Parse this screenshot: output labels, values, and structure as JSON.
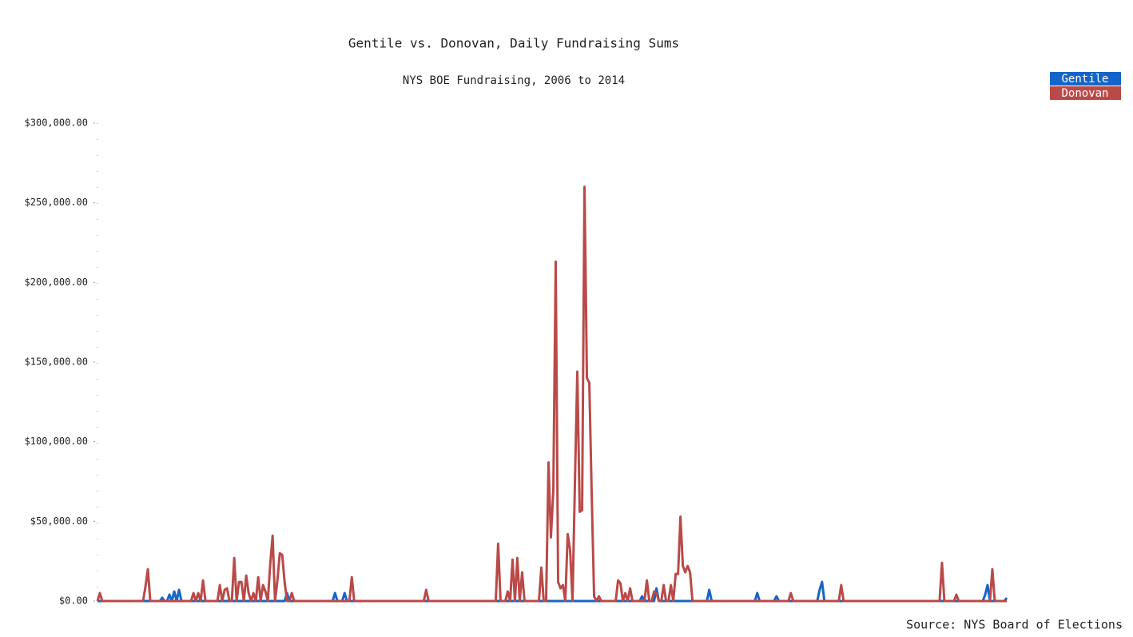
{
  "chart_data": {
    "type": "line",
    "title": "Gentile vs. Donovan, Daily Fundraising Sums",
    "subtitle": "NYS BOE Fundraising, 2006 to 2014",
    "source": "Source: NYS Board of Elections",
    "ylim": [
      0,
      300000
    ],
    "yticks": [
      {
        "value": 0,
        "label": "$0.00"
      },
      {
        "value": 50000,
        "label": "$50,000.00"
      },
      {
        "value": 100000,
        "label": "$100,000.00"
      },
      {
        "value": 150000,
        "label": "$150,000.00"
      },
      {
        "value": 200000,
        "label": "$200,000.00"
      },
      {
        "value": 250000,
        "label": "$250,000.00"
      },
      {
        "value": 300000,
        "label": "$300,000.00"
      }
    ],
    "legend": "top-right",
    "series": [
      {
        "name": "Gentile",
        "color": "#1565c8",
        "values": [
          0,
          0,
          0,
          0,
          0,
          0,
          0,
          0,
          0,
          0,
          0,
          0,
          0,
          0,
          0,
          0,
          0,
          0,
          0,
          0,
          0,
          0,
          0,
          0,
          0,
          0,
          0,
          2000,
          0,
          0,
          4000,
          0,
          6000,
          0,
          7000,
          0,
          0,
          0,
          0,
          0,
          0,
          0,
          0,
          0,
          0,
          0,
          0,
          0,
          0,
          0,
          0,
          0,
          0,
          0,
          0,
          0,
          0,
          0,
          0,
          0,
          0,
          0,
          0,
          0,
          0,
          0,
          0,
          0,
          0,
          0,
          0,
          0,
          0,
          0,
          0,
          0,
          0,
          0,
          0,
          5000,
          0,
          0,
          0,
          0,
          0,
          0,
          0,
          0,
          0,
          0,
          0,
          0,
          0,
          0,
          0,
          0,
          0,
          0,
          0,
          5000,
          0,
          0,
          0,
          5000,
          0,
          0,
          0,
          0,
          0,
          0,
          0,
          0,
          0,
          0,
          0,
          0,
          0,
          0,
          0,
          0,
          0,
          0,
          0,
          0,
          0,
          0,
          0,
          0,
          0,
          0,
          0,
          0,
          0,
          0,
          0,
          0,
          0,
          0,
          0,
          0,
          0,
          0,
          0,
          0,
          0,
          0,
          0,
          0,
          0,
          0,
          0,
          0,
          0,
          0,
          0,
          0,
          0,
          0,
          0,
          0,
          0,
          0,
          0,
          0,
          0,
          0,
          0,
          0,
          0,
          0,
          0,
          0,
          0,
          0,
          0,
          0,
          0,
          0,
          0,
          0,
          0,
          0,
          0,
          0,
          0,
          0,
          0,
          0,
          0,
          0,
          0,
          0,
          0,
          0,
          0,
          0,
          0,
          0,
          0,
          0,
          0,
          0,
          0,
          0,
          0,
          0,
          0,
          0,
          0,
          0,
          0,
          0,
          0,
          0,
          0,
          0,
          0,
          0,
          0,
          0,
          0,
          0,
          0,
          0,
          0,
          0,
          0,
          3000,
          0,
          0,
          0,
          0,
          0,
          8000,
          0,
          0,
          0,
          0,
          0,
          0,
          0,
          0,
          0,
          0,
          0,
          0,
          0,
          0,
          0,
          0,
          0,
          0,
          0,
          0,
          0,
          7000,
          0,
          0,
          0,
          0,
          0,
          0,
          0,
          0,
          0,
          0,
          0,
          0,
          0,
          0,
          0,
          0,
          0,
          0,
          0,
          5000,
          0,
          0,
          0,
          0,
          0,
          0,
          0,
          3000,
          0,
          0,
          0,
          0,
          0,
          0,
          0,
          0,
          0,
          0,
          0,
          0,
          0,
          0,
          0,
          0,
          0,
          7000,
          12000,
          0,
          0,
          0,
          0,
          0,
          0,
          0,
          0,
          0,
          0,
          0,
          0,
          0,
          0,
          0,
          0,
          0,
          0,
          0,
          0,
          0,
          0,
          0,
          0,
          0,
          0,
          0,
          0,
          0,
          0,
          0,
          0,
          0,
          0,
          0,
          0,
          0,
          0,
          0,
          0,
          0,
          0,
          0,
          0,
          0,
          0,
          0,
          0,
          0,
          0,
          0,
          0,
          0,
          0,
          0,
          0,
          0,
          0,
          0,
          0,
          0,
          0,
          0,
          0,
          0,
          0,
          0,
          4000,
          10000,
          0,
          0,
          0,
          0,
          0,
          0,
          0,
          2000
        ]
      },
      {
        "name": "Donovan",
        "color": "#b94a48",
        "values": [
          0,
          5000,
          0,
          0,
          0,
          0,
          0,
          0,
          0,
          0,
          0,
          0,
          0,
          0,
          0,
          0,
          0,
          0,
          0,
          0,
          9000,
          20000,
          0,
          0,
          0,
          0,
          0,
          0,
          0,
          0,
          0,
          0,
          0,
          0,
          0,
          0,
          0,
          0,
          0,
          0,
          5000,
          0,
          5000,
          0,
          13000,
          0,
          0,
          0,
          0,
          0,
          0,
          10000,
          0,
          7000,
          8000,
          0,
          0,
          27000,
          0,
          12000,
          12000,
          0,
          16000,
          5000,
          0,
          5000,
          0,
          15000,
          0,
          10000,
          6000,
          0,
          23000,
          41000,
          0,
          13000,
          30000,
          29000,
          12000,
          0,
          0,
          5000,
          0,
          0,
          0,
          0,
          0,
          0,
          0,
          0,
          0,
          0,
          0,
          0,
          0,
          0,
          0,
          0,
          0,
          0,
          0,
          0,
          0,
          0,
          0,
          0,
          15000,
          0,
          0,
          0,
          0,
          0,
          0,
          0,
          0,
          0,
          0,
          0,
          0,
          0,
          0,
          0,
          0,
          0,
          0,
          0,
          0,
          0,
          0,
          0,
          0,
          0,
          0,
          0,
          0,
          0,
          0,
          7000,
          0,
          0,
          0,
          0,
          0,
          0,
          0,
          0,
          0,
          0,
          0,
          0,
          0,
          0,
          0,
          0,
          0,
          0,
          0,
          0,
          0,
          0,
          0,
          0,
          0,
          0,
          0,
          0,
          0,
          36000,
          0,
          0,
          0,
          6000,
          0,
          26000,
          0,
          27000,
          0,
          18000,
          0,
          0,
          0,
          0,
          0,
          0,
          0,
          21000,
          0,
          0,
          87000,
          40000,
          69000,
          213000,
          12000,
          8000,
          10000,
          0,
          42000,
          32000,
          0,
          74000,
          144000,
          56000,
          57000,
          260000,
          140000,
          137000,
          67000,
          3000,
          0,
          3000,
          0,
          0,
          0,
          0,
          0,
          0,
          0,
          13000,
          11000,
          0,
          5000,
          0,
          8000,
          0,
          0,
          0,
          0,
          0,
          0,
          13000,
          0,
          0,
          6000,
          5000,
          0,
          0,
          10000,
          0,
          0,
          10000,
          0,
          17000,
          17000,
          53000,
          22000,
          18000,
          22000,
          18000,
          0,
          0,
          0,
          0,
          0,
          0,
          0,
          0,
          0,
          0,
          0,
          0,
          0,
          0,
          0,
          0,
          0,
          0,
          0,
          0,
          0,
          0,
          0,
          0,
          0,
          0,
          0,
          0,
          0,
          0,
          0,
          0,
          0,
          0,
          0,
          0,
          0,
          0,
          0,
          0,
          0,
          5000,
          0,
          0,
          0,
          0,
          0,
          0,
          0,
          0,
          0,
          0,
          0,
          0,
          0,
          0,
          0,
          0,
          0,
          0,
          0,
          0,
          10000,
          0,
          0,
          0,
          0,
          0,
          0,
          0,
          0,
          0,
          0,
          0,
          0,
          0,
          0,
          0,
          0,
          0,
          0,
          0,
          0,
          0,
          0,
          0,
          0,
          0,
          0,
          0,
          0,
          0,
          0,
          0,
          0,
          0,
          0,
          0,
          0,
          0,
          0,
          0,
          0,
          0,
          24000,
          0,
          0,
          0,
          0,
          0,
          4000,
          0,
          0,
          0,
          0,
          0,
          0,
          0,
          0,
          0,
          0,
          0,
          0,
          0,
          0,
          20000,
          0,
          0,
          0,
          0,
          0,
          0
        ]
      }
    ]
  }
}
